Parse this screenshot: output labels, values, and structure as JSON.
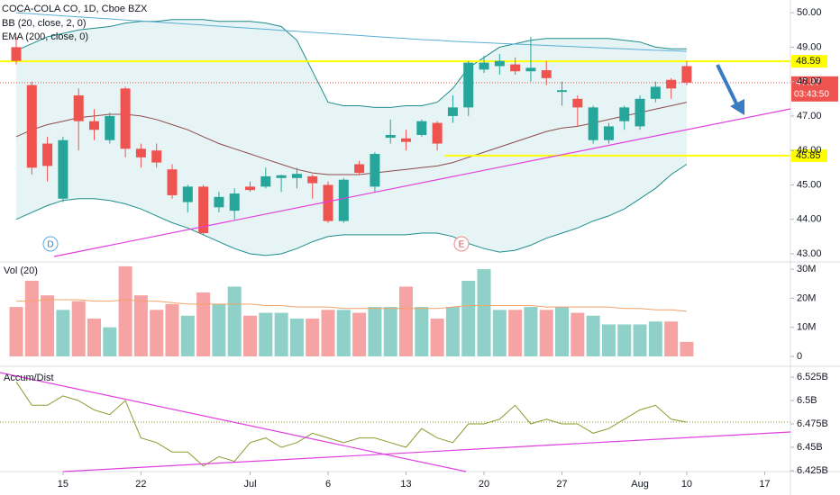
{
  "chart_data": [
    {
      "type": "candlestick",
      "title": "COCA-COLA CO, 1D, Cboe BZX",
      "up_color": "#26a69a",
      "down_color": "#ef5350",
      "open": [
        49.0,
        47.9,
        46.2,
        44.6,
        47.6,
        46.85,
        46.3,
        47.8,
        46.05,
        46.0,
        45.45,
        44.5,
        44.95,
        44.35,
        44.25,
        44.95,
        44.95,
        45.2,
        45.2,
        45.25,
        45.0,
        43.95,
        45.6,
        44.95,
        46.37,
        46.35,
        46.45,
        46.8,
        47.0,
        47.25,
        48.35,
        48.45,
        48.5,
        48.3,
        48.33,
        47.7,
        47.5,
        46.3,
        46.3,
        46.85,
        46.7,
        47.5,
        48.05,
        48.45
      ],
      "high": [
        49.3,
        48.0,
        46.4,
        46.4,
        47.8,
        47.2,
        47.1,
        47.85,
        46.2,
        46.2,
        45.6,
        45.0,
        45.0,
        44.8,
        44.9,
        45.1,
        45.5,
        45.3,
        45.5,
        45.3,
        45.1,
        45.2,
        45.7,
        45.95,
        46.9,
        46.6,
        46.9,
        46.85,
        47.6,
        48.6,
        48.75,
        48.8,
        48.7,
        49.3,
        48.6,
        48.0,
        47.6,
        47.3,
        46.8,
        47.3,
        47.6,
        48.0,
        48.1,
        48.6
      ],
      "low": [
        48.5,
        45.3,
        45.1,
        44.5,
        46.0,
        46.3,
        46.2,
        45.8,
        45.5,
        45.5,
        44.6,
        44.2,
        43.55,
        44.2,
        44.0,
        44.8,
        44.9,
        44.8,
        44.9,
        44.6,
        43.9,
        43.9,
        45.3,
        44.8,
        46.2,
        46.0,
        46.4,
        46.0,
        46.8,
        47.0,
        48.25,
        48.2,
        48.2,
        48.0,
        47.9,
        47.3,
        46.7,
        46.2,
        46.2,
        46.6,
        46.6,
        47.4,
        47.5,
        47.9
      ],
      "close": [
        48.6,
        45.5,
        45.55,
        46.3,
        46.85,
        46.6,
        47.0,
        46.05,
        45.8,
        45.65,
        44.7,
        44.95,
        43.6,
        44.65,
        44.75,
        44.85,
        45.25,
        45.28,
        45.32,
        45.05,
        43.95,
        45.15,
        45.35,
        45.9,
        46.45,
        46.25,
        46.85,
        46.2,
        47.25,
        48.55,
        48.55,
        48.6,
        48.3,
        48.4,
        48.1,
        47.75,
        47.25,
        47.25,
        46.7,
        47.25,
        47.5,
        47.85,
        47.8,
        47.97
      ],
      "indicators": [
        {
          "name": "BB (20, close, 2, 0)",
          "color": "#1f8c8c",
          "basis_color": "#8d4b4b",
          "fill": "#e6f4f5",
          "upper": [
            48.9,
            49.1,
            49.3,
            49.4,
            49.5,
            49.55,
            49.6,
            49.7,
            49.75,
            49.75,
            49.8,
            49.8,
            49.8,
            49.75,
            49.75,
            49.75,
            49.7,
            49.6,
            49.2,
            48.3,
            47.4,
            47.3,
            47.3,
            47.25,
            47.25,
            47.3,
            47.3,
            47.4,
            47.8,
            48.4,
            48.7,
            49.0,
            49.1,
            49.2,
            49.25,
            49.25,
            49.25,
            49.25,
            49.25,
            49.2,
            49.15,
            49.0,
            48.95,
            48.95
          ],
          "basis": [
            46.4,
            46.6,
            46.75,
            46.85,
            46.95,
            47.0,
            47.05,
            47.05,
            47.0,
            46.9,
            46.75,
            46.6,
            46.4,
            46.2,
            46.05,
            45.9,
            45.75,
            45.6,
            45.45,
            45.35,
            45.3,
            45.3,
            45.3,
            45.35,
            45.4,
            45.45,
            45.5,
            45.55,
            45.65,
            45.8,
            45.95,
            46.1,
            46.25,
            46.4,
            46.55,
            46.65,
            46.7,
            46.8,
            46.9,
            47.0,
            47.1,
            47.2,
            47.3,
            47.4
          ],
          "lower": [
            44.0,
            44.2,
            44.4,
            44.55,
            44.6,
            44.6,
            44.55,
            44.45,
            44.3,
            44.1,
            43.9,
            43.75,
            43.55,
            43.35,
            43.15,
            43.0,
            42.95,
            43.0,
            43.15,
            43.35,
            43.5,
            43.55,
            43.55,
            43.55,
            43.55,
            43.55,
            43.6,
            43.6,
            43.5,
            43.3,
            43.15,
            43.05,
            43.1,
            43.25,
            43.45,
            43.6,
            43.75,
            43.95,
            44.1,
            44.3,
            44.6,
            44.9,
            45.3,
            45.6
          ]
        },
        {
          "name": "EMA (200, close, 0)",
          "color": "#5aaed8",
          "values": [
            50.0,
            49.97,
            49.94,
            49.91,
            49.88,
            49.85,
            49.82,
            49.79,
            49.76,
            49.73,
            49.7,
            49.67,
            49.64,
            49.61,
            49.58,
            49.55,
            49.52,
            49.49,
            49.46,
            49.43,
            49.4,
            49.37,
            49.34,
            49.31,
            49.28,
            49.25,
            49.22,
            49.2,
            49.17,
            49.15,
            49.13,
            49.11,
            49.09,
            49.07,
            49.05,
            49.03,
            49.01,
            48.99,
            48.97,
            48.95,
            48.93,
            48.91,
            48.9,
            48.88
          ]
        }
      ],
      "levels": [
        {
          "value": 48.59,
          "color": "#ffff00"
        },
        {
          "value": 45.85,
          "color": "#ffff00"
        }
      ],
      "last_label": "47.97",
      "countdown": "03:43:50",
      "events": [
        "D",
        "E"
      ],
      "ylim": [
        42.79,
        50.37
      ],
      "yticks": [
        {
          "value": 43,
          "label": "43.00"
        },
        {
          "value": 44,
          "label": "44.00"
        },
        {
          "value": 45,
          "label": "45.00"
        },
        {
          "value": 46,
          "label": "46.00"
        },
        {
          "value": 47,
          "label": "47.00"
        },
        {
          "value": 48,
          "label": "48.00"
        },
        {
          "value": 49,
          "label": "49.00"
        },
        {
          "value": 50,
          "label": "50.00"
        }
      ]
    },
    {
      "type": "bar",
      "title": "Vol (20)",
      "up_color": "#8fd1c8",
      "down_color": "#f5a3a3",
      "values": [
        17,
        26,
        21,
        16,
        19,
        13,
        10,
        31,
        21,
        16,
        18,
        14,
        22,
        18,
        24,
        14,
        15,
        15,
        13,
        13,
        16,
        16,
        15,
        17,
        17,
        24,
        17,
        13,
        17,
        26,
        30,
        16,
        16,
        17,
        16,
        17,
        15,
        14,
        11,
        11,
        11,
        12,
        12,
        5
      ],
      "ma": {
        "color": "#f4a46a",
        "values": [
          19,
          19,
          19.5,
          19.5,
          19.5,
          19,
          19,
          19.5,
          19,
          19,
          18.5,
          18,
          18,
          18,
          18,
          18,
          17.5,
          17.5,
          17,
          17,
          17,
          16.5,
          16.5,
          16.5,
          16.5,
          16.5,
          16.5,
          16.5,
          17,
          17.5,
          17.5,
          17.5,
          17.5,
          17.5,
          17,
          17,
          17,
          17,
          17,
          16.5,
          16.5,
          16,
          16,
          15.5
        ]
      },
      "ylim": [
        -3.1,
        32.2
      ],
      "yticks": [
        0,
        {
          "value": 10,
          "label": "10M"
        },
        {
          "value": 20,
          "label": "20M"
        },
        {
          "value": 30,
          "label": "30M"
        }
      ]
    },
    {
      "type": "line",
      "title": "Accum/Dist",
      "color": "#8d9a2e",
      "values": [
        6.52,
        6.495,
        6.495,
        6.505,
        6.5,
        6.49,
        6.485,
        6.5,
        6.46,
        6.455,
        6.445,
        6.445,
        6.43,
        6.44,
        6.435,
        6.455,
        6.46,
        6.45,
        6.455,
        6.465,
        6.46,
        6.455,
        6.46,
        6.46,
        6.455,
        6.45,
        6.47,
        6.46,
        6.455,
        6.475,
        6.475,
        6.48,
        6.495,
        6.475,
        6.48,
        6.475,
        6.475,
        6.465,
        6.47,
        6.48,
        6.49,
        6.495,
        6.48,
        6.477
      ],
      "ylim": [
        6.424,
        6.5357
      ],
      "yticks": [
        {
          "value": 6.425,
          "label": "6.425B"
        },
        {
          "value": 6.45,
          "label": "6.45B"
        },
        {
          "value": 6.475,
          "label": "6.475B"
        },
        {
          "value": 6.5,
          "label": "6.5B"
        },
        {
          "value": 6.525,
          "label": "6.525B"
        }
      ]
    }
  ],
  "xaxis": {
    "xlim": [
      -1.04,
      49.65
    ],
    "xticks": [
      {
        "value": 3,
        "label": "15"
      },
      {
        "value": 8,
        "label": "22"
      },
      {
        "value": 15,
        "label": "Jul"
      },
      {
        "value": 20,
        "label": "6"
      },
      {
        "value": 25,
        "label": "13"
      },
      {
        "value": 30,
        "label": "20"
      },
      {
        "value": 35,
        "label": "27"
      },
      {
        "value": 40,
        "label": "Aug"
      },
      {
        "value": 43,
        "label": "10"
      },
      {
        "value": 48,
        "label": "17"
      }
    ]
  }
}
